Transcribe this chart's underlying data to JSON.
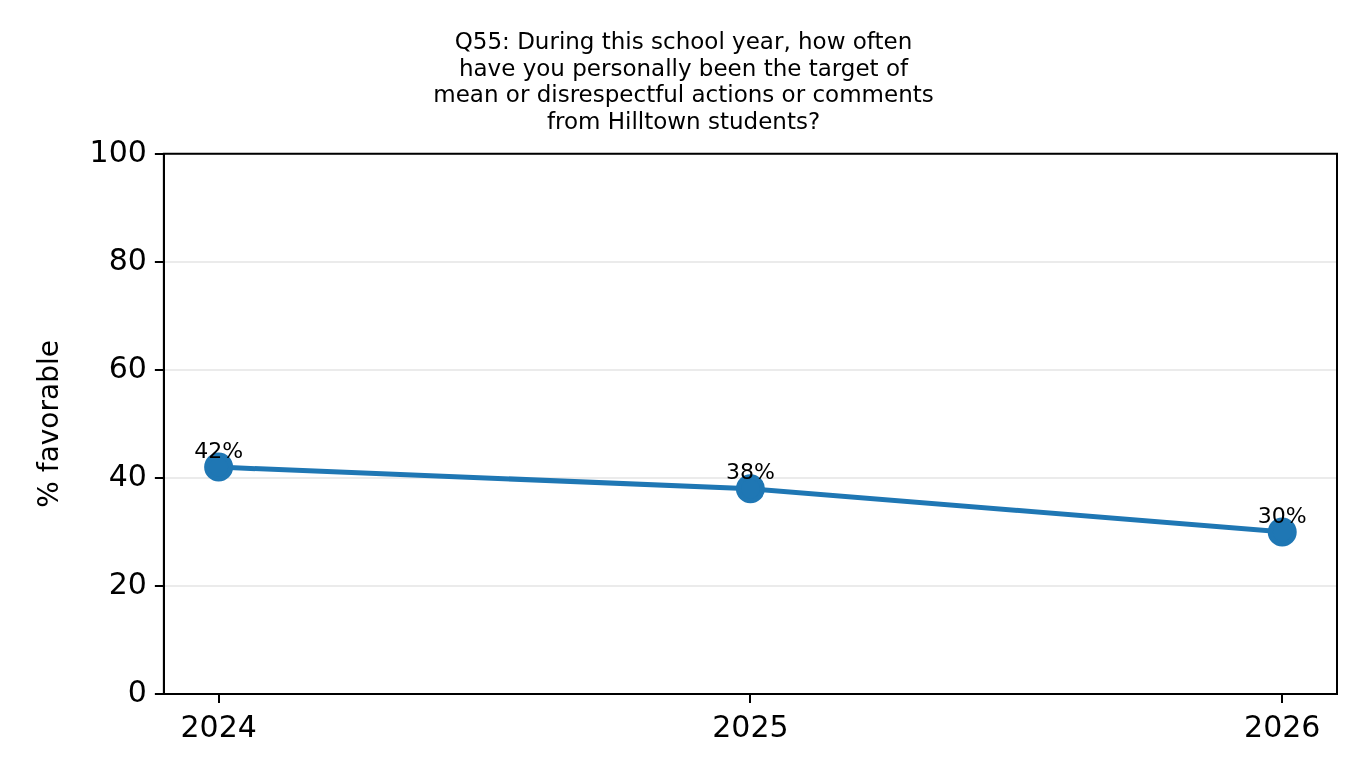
{
  "chart_data": {
    "type": "line",
    "title": "Q55: During this school year, how often\nhave you personally been the target of\nmean or disrespectful actions or comments\nfrom Hilltown students?",
    "ylabel": "% favorable",
    "categories": [
      "2024",
      "2025",
      "2026"
    ],
    "series": [
      {
        "color": "#1f77b4",
        "values": [
          42,
          38,
          30
        ],
        "value_labels": [
          "42%",
          "38%",
          "30%"
        ]
      }
    ],
    "ylim": [
      0,
      100
    ],
    "yticks": [
      0,
      20,
      40,
      60,
      80,
      100
    ],
    "grid": "y",
    "legend": false,
    "marker": "circle",
    "line_style": "solid"
  }
}
